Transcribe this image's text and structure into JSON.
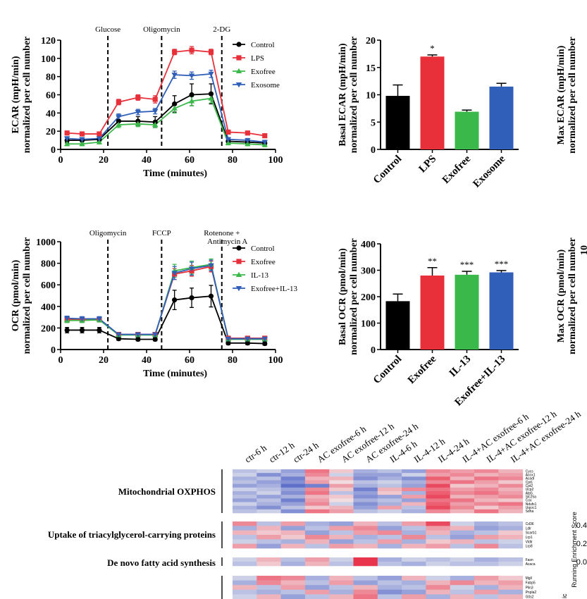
{
  "colors": {
    "black": "#000000",
    "red": "#e8303b",
    "green": "#3bb84a",
    "blue": "#2f5fb8",
    "heat_low": "#3a4fc0",
    "heat_mid": "#f2f2f2",
    "heat_high": "#e8203a"
  },
  "chart_data": [
    {
      "id": "ecar_time",
      "type": "line",
      "xlabel": "Time (minutes)",
      "ylabel": [
        "ECAR (mpH/min)",
        "normalized per cell number"
      ],
      "xlim": [
        0,
        100
      ],
      "ylim": [
        0,
        120
      ],
      "xticks": [
        0,
        20,
        40,
        60,
        80,
        100
      ],
      "yticks": [
        0,
        20,
        40,
        60,
        80,
        100,
        120
      ],
      "injections": [
        {
          "x": 22,
          "label": "Glucose"
        },
        {
          "x": 47,
          "label": "Oligomycin"
        },
        {
          "x": 75,
          "label": "2-DG"
        }
      ],
      "x": [
        3,
        10,
        18,
        27,
        36,
        44,
        53,
        61,
        70,
        78,
        87,
        95
      ],
      "series": [
        {
          "name": "Control",
          "color": "black",
          "marker": "circle",
          "values": [
            10,
            10,
            11,
            31,
            31,
            30,
            50,
            60,
            61,
            9,
            8,
            7
          ],
          "err": [
            3,
            2,
            2,
            5,
            5,
            6,
            9,
            12,
            11,
            2,
            2,
            2
          ]
        },
        {
          "name": "LPS",
          "color": "red",
          "marker": "square",
          "values": [
            18,
            17,
            17,
            52,
            57,
            55,
            107,
            109,
            107,
            19,
            18,
            15
          ],
          "err": [
            2,
            2,
            2,
            3,
            3,
            4,
            3,
            4,
            3,
            2,
            2,
            2
          ]
        },
        {
          "name": "Exofree",
          "color": "green",
          "marker": "triangle-up",
          "values": [
            6,
            6,
            8,
            27,
            28,
            27,
            45,
            53,
            56,
            7,
            6,
            5
          ],
          "err": [
            2,
            2,
            2,
            3,
            3,
            3,
            5,
            5,
            5,
            2,
            2,
            2
          ]
        },
        {
          "name": "Exosome",
          "color": "blue",
          "marker": "triangle-down",
          "values": [
            12,
            11,
            12,
            36,
            41,
            42,
            82,
            81,
            83,
            11,
            10,
            8
          ],
          "err": [
            2,
            2,
            2,
            3,
            3,
            3,
            4,
            4,
            4,
            2,
            2,
            2
          ]
        }
      ]
    },
    {
      "id": "basal_ecar",
      "type": "bar",
      "ylabel": [
        "Basal ECAR (mpH/min)",
        "normalized per cell number"
      ],
      "ylim": [
        0,
        20
      ],
      "yticks": [
        0,
        5,
        10,
        15,
        20
      ],
      "categories": [
        "Control",
        "LPS",
        "Exofree",
        "Exosome"
      ],
      "values": [
        9.8,
        17.0,
        6.9,
        11.5
      ],
      "err": [
        2.0,
        0.3,
        0.3,
        0.6
      ],
      "colors": [
        "black",
        "red",
        "green",
        "blue"
      ],
      "annotations": [
        "",
        "*",
        "",
        ""
      ]
    },
    {
      "id": "max_ecar_cut",
      "type": "bar",
      "ylabel": [
        "Max ECAR (mpH/min)",
        "normalized per cell number"
      ]
    },
    {
      "id": "ocr_time",
      "type": "line",
      "xlabel": "Time (minutes)",
      "ylabel": [
        "OCR (pmol/min)",
        "normalized per cell number"
      ],
      "xlim": [
        0,
        100
      ],
      "ylim": [
        0,
        1000
      ],
      "xticks": [
        0,
        20,
        40,
        60,
        80,
        100
      ],
      "yticks": [
        0,
        200,
        400,
        600,
        800,
        1000
      ],
      "injections": [
        {
          "x": 22,
          "label": "Oligomycin"
        },
        {
          "x": 47,
          "label": "FCCP"
        },
        {
          "x": 75,
          "label": "Rotenone +"
        }
      ],
      "injection_sub": "Antimycin A",
      "x": [
        3,
        10,
        18,
        27,
        36,
        44,
        53,
        61,
        70,
        78,
        87,
        95
      ],
      "series": [
        {
          "name": "Control",
          "color": "black",
          "marker": "circle",
          "values": [
            180,
            180,
            180,
            100,
            95,
            95,
            460,
            480,
            495,
            60,
            60,
            55
          ],
          "err": [
            25,
            25,
            25,
            15,
            15,
            15,
            90,
            90,
            100,
            15,
            15,
            15
          ]
        },
        {
          "name": "Exofree",
          "color": "red",
          "marker": "square",
          "values": [
            280,
            280,
            280,
            140,
            140,
            140,
            700,
            730,
            770,
            105,
            105,
            105
          ],
          "err": [
            20,
            20,
            20,
            15,
            15,
            15,
            50,
            50,
            50,
            15,
            15,
            15
          ]
        },
        {
          "name": "IL-13",
          "color": "green",
          "marker": "triangle-up",
          "values": [
            270,
            270,
            275,
            135,
            135,
            135,
            730,
            760,
            790,
            95,
            95,
            95
          ],
          "err": [
            20,
            20,
            20,
            15,
            15,
            15,
            60,
            60,
            50,
            15,
            15,
            15
          ]
        },
        {
          "name": "Exofree+IL-13",
          "color": "blue",
          "marker": "triangle-down",
          "values": [
            290,
            285,
            285,
            140,
            140,
            140,
            710,
            750,
            780,
            100,
            100,
            100
          ],
          "err": [
            20,
            20,
            20,
            15,
            15,
            15,
            60,
            60,
            50,
            15,
            15,
            15
          ]
        }
      ]
    },
    {
      "id": "basal_ocr",
      "type": "bar",
      "ylabel": [
        "Basal OCR (pmol/min)",
        "normalized per cell number"
      ],
      "ylim": [
        0,
        400
      ],
      "yticks": [
        0,
        100,
        200,
        300,
        400
      ],
      "categories": [
        "Control",
        "Exofree",
        "IL-13",
        "Exofree+IL-13"
      ],
      "values": [
        183,
        280,
        283,
        292
      ],
      "err": [
        27,
        30,
        13,
        7
      ],
      "colors": [
        "black",
        "red",
        "green",
        "blue"
      ],
      "annotations": [
        "",
        "**",
        "***",
        "***"
      ]
    },
    {
      "id": "max_ocr_cut",
      "type": "bar",
      "ylabel": [
        "Max OCR (pmol/min)",
        "normalized per cell number"
      ],
      "partial_tick": "10"
    },
    {
      "id": "heatmap",
      "type": "heatmap",
      "columns": [
        "ctr-6 h",
        "ctr-12 h",
        "ctr-24 h",
        "AC exofree-6 h",
        "AC exofree-12 h",
        "AC exofree-24 h",
        "IL-4-6 h",
        "IL-4-12 h",
        "IL-4-24 h",
        "IL-4+AC exofree-6 h",
        "IL-4+AC exofree-12 h",
        "IL-4+AC exofree-24 h"
      ],
      "groups": [
        {
          "name": "Mitochondrial OXPHOS",
          "genes": [
            "Cycs",
            "Acox1",
            "Acadl",
            "Cpt1",
            "Cpt2",
            "Ucp2",
            "Atp5",
            "Slc25a",
            "Cox",
            "Ndufs1",
            "Uqcrc1",
            "Sdha"
          ],
          "values": [
            [
              -0.3,
              -0.2,
              -0.5,
              0.6,
              0.2,
              -0.4,
              -0.3,
              -0.5,
              0.5,
              0.4,
              0.5,
              0.3
            ],
            [
              -0.2,
              -0.6,
              -0.4,
              0.5,
              -0.2,
              -0.5,
              -0.5,
              -0.2,
              0.4,
              0.5,
              0.3,
              0.4
            ],
            [
              -0.4,
              -0.3,
              -0.7,
              0.3,
              0.3,
              -0.6,
              -0.4,
              -0.6,
              0.7,
              0.3,
              0.6,
              0.5
            ],
            [
              -0.3,
              -0.5,
              -0.6,
              0.4,
              0.1,
              -0.3,
              -0.2,
              -0.4,
              0.5,
              0.6,
              0.4,
              0.2
            ],
            [
              -0.5,
              -0.4,
              -0.8,
              -0.7,
              0.4,
              -0.4,
              -0.3,
              -0.5,
              0.8,
              0.2,
              0.3,
              0.5
            ],
            [
              -0.2,
              -0.3,
              -0.5,
              0.5,
              0.2,
              -0.7,
              0.3,
              0.5,
              0.6,
              0.4,
              0.5,
              0.3
            ],
            [
              -0.4,
              -0.2,
              -0.6,
              0.6,
              -0.3,
              -0.5,
              0.2,
              -0.4,
              0.7,
              0.5,
              0.6,
              0.4
            ],
            [
              -0.3,
              -0.5,
              -0.4,
              0.3,
              0.2,
              -0.6,
              -0.5,
              0.4,
              0.8,
              0.3,
              0.4,
              0.5
            ],
            [
              -0.5,
              -0.3,
              -0.7,
              0.4,
              0.1,
              -0.4,
              -0.3,
              -0.5,
              0.6,
              0.6,
              0.3,
              0.2
            ],
            [
              -0.2,
              -0.4,
              -0.5,
              0.5,
              -0.2,
              -0.6,
              -0.4,
              0.3,
              0.7,
              0.4,
              0.5,
              0.6
            ],
            [
              -0.4,
              -0.6,
              -0.3,
              0.2,
              0.3,
              -0.5,
              0.4,
              -0.3,
              0.8,
              0.5,
              0.2,
              0.4
            ],
            [
              -0.3,
              -0.2,
              -0.6,
              0.6,
              0.4,
              -0.3,
              -0.2,
              -0.4,
              0.5,
              0.3,
              0.6,
              0.3
            ]
          ]
        },
        {
          "name": "Uptake of triacylglycerol-carrying proteins",
          "genes": [
            "Cd36",
            "Ldlr",
            "Scarb1",
            "Lrp1",
            "Vldlr",
            "Lrp8"
          ],
          "values": [
            [
              0.5,
              -0.3,
              0.4,
              -0.4,
              -0.5,
              0.3,
              -0.3,
              0.4,
              0.8,
              -0.2,
              -0.4,
              -0.3
            ],
            [
              -0.4,
              0.3,
              -0.5,
              -0.3,
              0.4,
              0.5,
              -0.5,
              -0.3,
              0.4,
              0.3,
              -0.5,
              -0.4
            ],
            [
              0.3,
              0.2,
              0.3,
              -0.5,
              -0.3,
              0.4,
              0.5,
              -0.4,
              0.3,
              -0.4,
              -0.3,
              0.2
            ],
            [
              -0.3,
              0.4,
              0.2,
              0.5,
              0.3,
              -0.4,
              -0.3,
              0.5,
              -0.3,
              -0.5,
              0.4,
              0.3
            ],
            [
              -0.2,
              -0.3,
              -0.4,
              0.3,
              -0.5,
              -0.3,
              0.4,
              -0.4,
              0.2,
              0.3,
              -0.3,
              -0.2
            ],
            [
              0.4,
              -0.5,
              0.3,
              -0.3,
              0.4,
              0.3,
              -0.4,
              0.3,
              0.4,
              -0.3,
              0.5,
              -0.3
            ]
          ]
        },
        {
          "name": "De novo fatty acid synthesis",
          "genes": [
            "Fasn",
            "Acaca"
          ],
          "values": [
            [
              -0.2,
              0.3,
              -0.3,
              0.4,
              -0.2,
              0.9,
              -0.4,
              -0.2,
              -0.3,
              -0.2,
              -0.4,
              -0.3
            ],
            [
              -0.3,
              0.2,
              -0.4,
              0.3,
              -0.3,
              0.9,
              -0.3,
              -0.4,
              -0.2,
              -0.3,
              -0.3,
              -0.2
            ]
          ]
        },
        {
          "name": "",
          "genes": [
            "Mgll",
            "Fabp5",
            "Plin3",
            "Pnpla2",
            "G0s2"
          ],
          "values": [
            [
              -0.2,
              0.6,
              0.5,
              -0.4,
              0.3,
              -0.3,
              -0.5,
              0.3,
              -0.2,
              -0.4,
              0.4,
              0.2
            ],
            [
              -0.4,
              0.5,
              0.3,
              -0.3,
              0.4,
              -0.5,
              -0.3,
              -0.4,
              0.3,
              0.5,
              0.3,
              0.4
            ],
            [
              0.3,
              -0.3,
              0.4,
              -0.5,
              -0.3,
              0.3,
              -0.4,
              -0.3,
              0.5,
              -0.2,
              -0.4,
              0.3
            ],
            [
              -0.3,
              -0.4,
              -0.3,
              0.4,
              -0.4,
              0.5,
              -0.6,
              -0.5,
              0.3,
              -0.3,
              0.4,
              -0.4
            ],
            [
              -0.2,
              0.3,
              -0.5,
              -0.3,
              0.3,
              0.6,
              -0.3,
              0.4,
              -0.4,
              0.3,
              -0.3,
              0.3
            ]
          ]
        }
      ]
    }
  ],
  "side_panel": {
    "ylabel": "Running Enrichment Score",
    "ticks": [
      "0.4",
      "0.2",
      "0.0"
    ],
    "cut_label": "ic"
  }
}
